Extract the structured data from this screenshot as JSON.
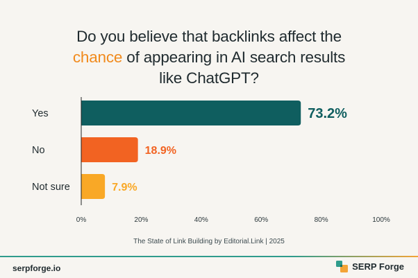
{
  "title": {
    "line1": "Do you believe that backlinks affect the",
    "line2_highlight": "chance",
    "line2_rest": " of appearing in AI search results",
    "line3": "like ChatGPT?"
  },
  "chart_data": {
    "type": "bar",
    "orientation": "horizontal",
    "categories": [
      "Yes",
      "No",
      "Not sure"
    ],
    "values": [
      73.2,
      18.9,
      7.9
    ],
    "value_labels": [
      "73.2%",
      "18.9%",
      "7.9%"
    ],
    "colors": [
      "#0f5e5f",
      "#f26322",
      "#f9a826"
    ],
    "xlim": [
      0,
      100
    ],
    "x_ticks": [
      0,
      20,
      40,
      60,
      80,
      100
    ],
    "x_tick_labels": [
      "0%",
      "20%",
      "40%",
      "60%",
      "80%",
      "100%"
    ],
    "grid": false
  },
  "source": "The State of Link Building by Editorial.Link | 2025",
  "footer": {
    "site": "serpforge.io",
    "brand": "SERP Forge",
    "brand_icon": "serp-forge-logo-icon",
    "line_colors": [
      "#2f9c8c",
      "#f3a436"
    ]
  }
}
